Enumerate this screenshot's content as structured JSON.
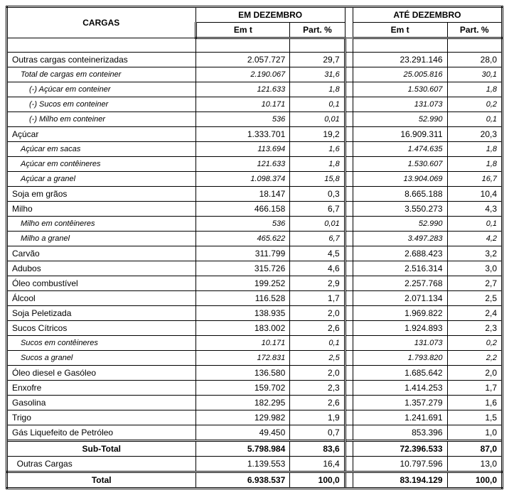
{
  "headers": {
    "cargas": "CARGAS",
    "em_dez": "EM DEZEMBRO",
    "ate_dez": "ATÉ DEZEMBRO",
    "emt": "Em t",
    "pct": "Part. %"
  },
  "rows": [
    {
      "t": "blank"
    },
    {
      "t": "main",
      "label": "Outras cargas conteinerizadas",
      "a": "2.057.727",
      "b": "29,7",
      "c": "23.291.146",
      "d": "28,0",
      "top": true
    },
    {
      "t": "sub",
      "label": "Total de cargas em conteiner",
      "a": "2.190.067",
      "b": "31,6",
      "c": "25.005.816",
      "d": "30,1",
      "top": true
    },
    {
      "t": "sub2",
      "label": "(-) Açúcar em conteiner",
      "a": "121.633",
      "b": "1,8",
      "c": "1.530.607",
      "d": "1,8",
      "top": true
    },
    {
      "t": "sub2",
      "label": "(-) Sucos em conteiner",
      "a": "10.171",
      "b": "0,1",
      "c": "131.073",
      "d": "0,2",
      "top": true
    },
    {
      "t": "sub2",
      "label": "(-) Milho em conteiner",
      "a": "536",
      "b": "0,01",
      "c": "52.990",
      "d": "0,1",
      "top": true
    },
    {
      "t": "main",
      "label": "Açúcar",
      "a": "1.333.701",
      "b": "19,2",
      "c": "16.909.311",
      "d": "20,3",
      "top": true
    },
    {
      "t": "sub",
      "label": "Açúcar em sacas",
      "a": "113.694",
      "b": "1,6",
      "c": "1.474.635",
      "d": "1,8",
      "top": true
    },
    {
      "t": "sub",
      "label": "Açúcar em contêineres",
      "a": "121.633",
      "b": "1,8",
      "c": "1.530.607",
      "d": "1,8",
      "top": true
    },
    {
      "t": "sub",
      "label": "Açúcar a granel",
      "a": "1.098.374",
      "b": "15,8",
      "c": "13.904.069",
      "d": "16,7",
      "top": true
    },
    {
      "t": "main",
      "label": "Soja em grãos",
      "a": "18.147",
      "b": "0,3",
      "c": "8.665.188",
      "d": "10,4",
      "top": true
    },
    {
      "t": "main",
      "label": "Milho",
      "a": "466.158",
      "b": "6,7",
      "c": "3.550.273",
      "d": "4,3",
      "top": true
    },
    {
      "t": "sub",
      "label": "Milho em contêineres",
      "a": "536",
      "b": "0,01",
      "c": "52.990",
      "d": "0,1",
      "top": true
    },
    {
      "t": "sub",
      "label": "Milho a granel",
      "a": "465.622",
      "b": "6,7",
      "c": "3.497.283",
      "d": "4,2",
      "top": true
    },
    {
      "t": "main",
      "label": "Carvão",
      "a": "311.799",
      "b": "4,5",
      "c": "2.688.423",
      "d": "3,2",
      "top": true
    },
    {
      "t": "main",
      "label": "Adubos",
      "a": "315.726",
      "b": "4,6",
      "c": "2.516.314",
      "d": "3,0",
      "top": true
    },
    {
      "t": "main",
      "label": "Óleo combustível",
      "a": "199.252",
      "b": "2,9",
      "c": "2.257.768",
      "d": "2,7",
      "top": true
    },
    {
      "t": "main",
      "label": "Álcool",
      "a": "116.528",
      "b": "1,7",
      "c": "2.071.134",
      "d": "2,5",
      "top": true
    },
    {
      "t": "main",
      "label": "Soja Peletizada",
      "a": "138.935",
      "b": "2,0",
      "c": "1.969.822",
      "d": "2,4",
      "top": true
    },
    {
      "t": "main",
      "label": "Sucos Cítricos",
      "a": "183.002",
      "b": "2,6",
      "c": "1.924.893",
      "d": "2,3",
      "top": true
    },
    {
      "t": "sub",
      "label": "Sucos em contêineres",
      "a": "10.171",
      "b": "0,1",
      "c": "131.073",
      "d": "0,2",
      "top": true
    },
    {
      "t": "sub",
      "label": "Sucos a granel",
      "a": "172.831",
      "b": "2,5",
      "c": "1.793.820",
      "d": "2,2",
      "top": true
    },
    {
      "t": "main",
      "label": "Óleo diesel e Gasóleo",
      "a": "136.580",
      "b": "2,0",
      "c": "1.685.642",
      "d": "2,0",
      "top": true
    },
    {
      "t": "main",
      "label": "Enxofre",
      "a": "159.702",
      "b": "2,3",
      "c": "1.414.253",
      "d": "1,7",
      "top": true
    },
    {
      "t": "main",
      "label": "Gasolina",
      "a": "182.295",
      "b": "2,6",
      "c": "1.357.279",
      "d": "1,6",
      "top": true
    },
    {
      "t": "main",
      "label": "Trigo",
      "a": "129.982",
      "b": "1,9",
      "c": "1.241.691",
      "d": "1,5",
      "top": true
    },
    {
      "t": "main",
      "label": "Gás Liquefeito de Petróleo",
      "a": "49.450",
      "b": "0,7",
      "c": "853.396",
      "d": "1,0",
      "top": true
    }
  ],
  "subtotal": {
    "label": "Sub-Total",
    "a": "5.798.984",
    "b": "83,6",
    "c": "72.396.533",
    "d": "87,0"
  },
  "outras": {
    "label": "Outras Cargas",
    "a": "1.139.553",
    "b": "16,4",
    "c": "10.797.596",
    "d": "13,0"
  },
  "total": {
    "label": "Total",
    "a": "6.938.537",
    "b": "100,0",
    "c": "83.194.129",
    "d": "100,0"
  }
}
